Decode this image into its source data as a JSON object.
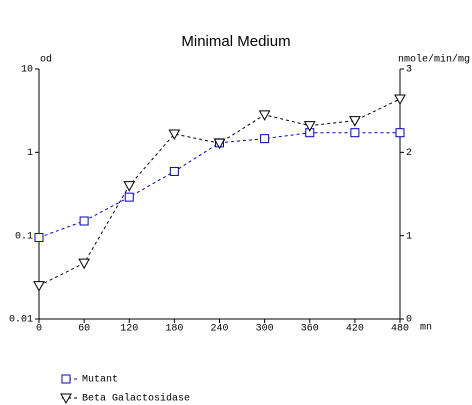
{
  "chart_data": {
    "type": "line",
    "title": "Minimal Medium",
    "ylabel": "od",
    "y2label": "nmole/min/mg",
    "xlabel": "mn",
    "x": [
      0,
      60,
      120,
      180,
      240,
      300,
      360,
      420,
      480
    ],
    "xlim": [
      0,
      480
    ],
    "xticks": [
      0,
      60,
      120,
      180,
      240,
      300,
      360,
      420,
      480
    ],
    "ylim": [
      0.01,
      10
    ],
    "yticks": [
      0.01,
      0.1,
      1,
      10
    ],
    "ylog": true,
    "y2lim": [
      0,
      3
    ],
    "y2ticks": [
      0,
      1,
      2,
      3
    ],
    "legend": "bottom-left",
    "line_style": "dashed",
    "series": [
      {
        "name": "Mutant",
        "color": "#0000cc",
        "marker": "square",
        "axis": "y",
        "values": [
          0.095,
          0.15,
          0.29,
          0.59,
          1.3,
          1.46,
          1.72,
          1.72,
          1.72
        ]
      },
      {
        "name": "Beta Galactosidase",
        "color": "#000000",
        "marker": "triangle-down",
        "axis": "y2",
        "values": [
          0.4,
          0.67,
          1.6,
          2.22,
          2.11,
          2.45,
          2.32,
          2.38,
          2.64
        ]
      }
    ]
  }
}
